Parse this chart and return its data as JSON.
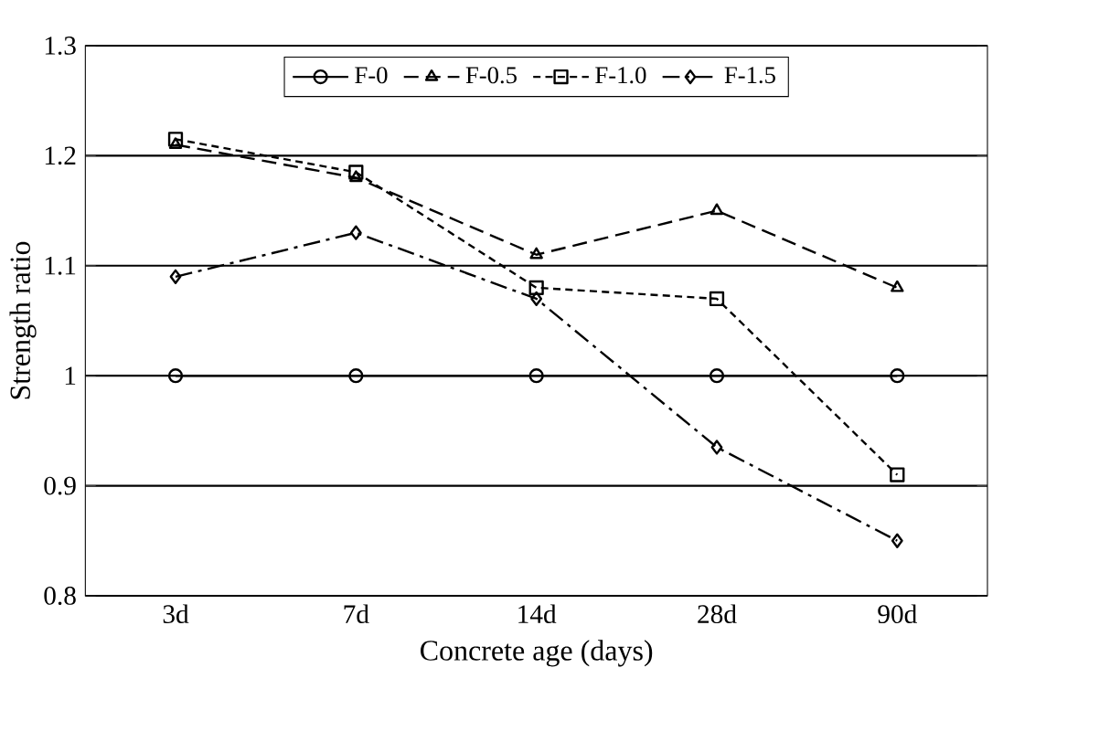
{
  "chart_data": {
    "type": "line",
    "xlabel": "Concrete age (days)",
    "ylabel": "Strength ratio",
    "categories": [
      "3d",
      "7d",
      "14d",
      "28d",
      "90d"
    ],
    "series": [
      {
        "name": "F-0",
        "color": "#000000",
        "marker": "circle",
        "line_style": "solid",
        "values": [
          1.0,
          1.0,
          1.0,
          1.0,
          1.0
        ]
      },
      {
        "name": "F-0.5",
        "color": "#000000",
        "marker": "triangle",
        "line_style": "dashed",
        "values": [
          1.21,
          1.18,
          1.11,
          1.15,
          1.08
        ]
      },
      {
        "name": "F-1.0",
        "color": "#000000",
        "marker": "square",
        "line_style": "dotted",
        "values": [
          1.215,
          1.185,
          1.08,
          1.07,
          0.91
        ]
      },
      {
        "name": "F-1.5",
        "color": "#000000",
        "marker": "diamond",
        "line_style": "dashdot",
        "values": [
          1.09,
          1.13,
          1.07,
          0.935,
          0.85
        ]
      }
    ],
    "ylim": [
      0.8,
      1.3
    ],
    "yticks": [
      0.8,
      0.9,
      1,
      1.1,
      1.2,
      1.3
    ],
    "grid": "y",
    "legend": "top"
  }
}
